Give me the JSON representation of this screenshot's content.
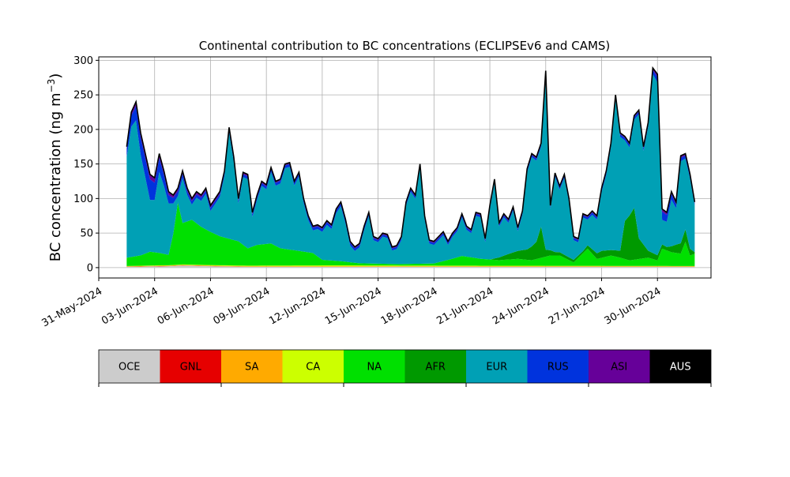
{
  "chart_data": {
    "type": "area",
    "stacked": true,
    "title": "Continental contribution to BC concentrations (ECLIPSEv6 and CAMS)",
    "ylabel_main": "BC concentration (ng m",
    "ylabel_sup": "−3",
    "ylabel_close": ")",
    "ylim": [
      -15,
      305
    ],
    "xlim_days": [
      "2024-05-31",
      "2024-07-02T21:00"
    ],
    "grid": true,
    "yticks": [
      0,
      50,
      100,
      150,
      200,
      250,
      300
    ],
    "xticks": [
      "31-May-2024",
      "03-Jun-2024",
      "06-Jun-2024",
      "09-Jun-2024",
      "12-Jun-2024",
      "15-Jun-2024",
      "18-Jun-2024",
      "21-Jun-2024",
      "24-Jun-2024",
      "27-Jun-2024",
      "30-Jun-2024"
    ],
    "x_start": "2024-06-01T12:00",
    "x_end": "2024-07-02",
    "x_step_hours": 6,
    "layer_order": [
      "OCE",
      "GNL",
      "SA",
      "CA",
      "NA",
      "AFR",
      "EUR",
      "RUS",
      "ASI",
      "AUS"
    ],
    "colors": {
      "OCE": "#cccccc",
      "GNL": "#e60000",
      "SA": "#ffaa00",
      "CA": "#ccff00",
      "NA": "#00e000",
      "AFR": "#009900",
      "EUR": "#00a0b5",
      "RUS": "#0033dd",
      "ASI": "#660099",
      "AUS": "#000000"
    },
    "legend": {
      "placement": "below",
      "entries": [
        "OCE",
        "GNL",
        "SA",
        "CA",
        "NA",
        "AFR",
        "EUR",
        "RUS",
        "ASI",
        "AUS"
      ]
    },
    "total_knots": [
      [
        "2024-06-01T12:00",
        175
      ],
      [
        "2024-06-01T18:00",
        225
      ],
      [
        "2024-06-02T00:00",
        240
      ],
      [
        "2024-06-02T06:00",
        195
      ],
      [
        "2024-06-02T12:00",
        165
      ],
      [
        "2024-06-02T18:00",
        135
      ],
      [
        "2024-06-03T00:00",
        130
      ],
      [
        "2024-06-03T06:00",
        165
      ],
      [
        "2024-06-03T12:00",
        140
      ],
      [
        "2024-06-03T18:00",
        110
      ],
      [
        "2024-06-04T00:00",
        105
      ],
      [
        "2024-06-04T06:00",
        115
      ],
      [
        "2024-06-04T12:00",
        140
      ],
      [
        "2024-06-04T18:00",
        115
      ],
      [
        "2024-06-05T00:00",
        100
      ],
      [
        "2024-06-05T06:00",
        110
      ],
      [
        "2024-06-05T12:00",
        105
      ],
      [
        "2024-06-05T18:00",
        115
      ],
      [
        "2024-06-06T00:00",
        90
      ],
      [
        "2024-06-06T06:00",
        100
      ],
      [
        "2024-06-06T12:00",
        110
      ],
      [
        "2024-06-06T18:00",
        140
      ],
      [
        "2024-06-07T00:00",
        203
      ],
      [
        "2024-06-07T06:00",
        160
      ],
      [
        "2024-06-07T12:00",
        100
      ],
      [
        "2024-06-07T18:00",
        138
      ],
      [
        "2024-06-08T00:00",
        135
      ],
      [
        "2024-06-08T06:00",
        80
      ],
      [
        "2024-06-08T12:00",
        105
      ],
      [
        "2024-06-08T18:00",
        125
      ],
      [
        "2024-06-09T00:00",
        120
      ],
      [
        "2024-06-09T06:00",
        145
      ],
      [
        "2024-06-09T12:00",
        125
      ],
      [
        "2024-06-09T18:00",
        128
      ],
      [
        "2024-06-10T00:00",
        150
      ],
      [
        "2024-06-10T06:00",
        152
      ],
      [
        "2024-06-10T12:00",
        125
      ],
      [
        "2024-06-10T18:00",
        138
      ],
      [
        "2024-06-11T00:00",
        100
      ],
      [
        "2024-06-11T06:00",
        75
      ],
      [
        "2024-06-11T12:00",
        60
      ],
      [
        "2024-06-11T18:00",
        62
      ],
      [
        "2024-06-12T00:00",
        58
      ],
      [
        "2024-06-12T06:00",
        68
      ],
      [
        "2024-06-12T12:00",
        62
      ],
      [
        "2024-06-12T18:00",
        85
      ],
      [
        "2024-06-13T00:00",
        95
      ],
      [
        "2024-06-13T06:00",
        70
      ],
      [
        "2024-06-13T12:00",
        38
      ],
      [
        "2024-06-13T18:00",
        30
      ],
      [
        "2024-06-14T00:00",
        35
      ],
      [
        "2024-06-14T06:00",
        60
      ],
      [
        "2024-06-14T12:00",
        80
      ],
      [
        "2024-06-14T18:00",
        45
      ],
      [
        "2024-06-15T00:00",
        42
      ],
      [
        "2024-06-15T06:00",
        50
      ],
      [
        "2024-06-15T12:00",
        48
      ],
      [
        "2024-06-15T18:00",
        30
      ],
      [
        "2024-06-16T00:00",
        32
      ],
      [
        "2024-06-16T06:00",
        45
      ],
      [
        "2024-06-16T12:00",
        95
      ],
      [
        "2024-06-16T18:00",
        115
      ],
      [
        "2024-06-17T00:00",
        105
      ],
      [
        "2024-06-17T06:00",
        150
      ],
      [
        "2024-06-17T12:00",
        75
      ],
      [
        "2024-06-17T18:00",
        40
      ],
      [
        "2024-06-18T00:00",
        38
      ],
      [
        "2024-06-18T06:00",
        45
      ],
      [
        "2024-06-18T12:00",
        52
      ],
      [
        "2024-06-18T18:00",
        38
      ],
      [
        "2024-06-19T00:00",
        50
      ],
      [
        "2024-06-19T06:00",
        58
      ],
      [
        "2024-06-19T12:00",
        78
      ],
      [
        "2024-06-19T18:00",
        60
      ],
      [
        "2024-06-20T00:00",
        55
      ],
      [
        "2024-06-20T06:00",
        80
      ],
      [
        "2024-06-20T12:00",
        78
      ],
      [
        "2024-06-20T18:00",
        42
      ],
      [
        "2024-06-21T00:00",
        90
      ],
      [
        "2024-06-21T06:00",
        128
      ],
      [
        "2024-06-21T12:00",
        65
      ],
      [
        "2024-06-21T18:00",
        78
      ],
      [
        "2024-06-22T00:00",
        70
      ],
      [
        "2024-06-22T06:00",
        88
      ],
      [
        "2024-06-22T12:00",
        58
      ],
      [
        "2024-06-22T18:00",
        82
      ],
      [
        "2024-06-23T00:00",
        143
      ],
      [
        "2024-06-23T06:00",
        165
      ],
      [
        "2024-06-23T12:00",
        160
      ],
      [
        "2024-06-23T18:00",
        180
      ],
      [
        "2024-06-24T00:00",
        285
      ],
      [
        "2024-06-24T06:00",
        90
      ],
      [
        "2024-06-24T12:00",
        137
      ],
      [
        "2024-06-24T18:00",
        118
      ],
      [
        "2024-06-25T00:00",
        135
      ],
      [
        "2024-06-25T06:00",
        100
      ],
      [
        "2024-06-25T12:00",
        45
      ],
      [
        "2024-06-25T18:00",
        42
      ],
      [
        "2024-06-26T00:00",
        78
      ],
      [
        "2024-06-26T06:00",
        75
      ],
      [
        "2024-06-26T12:00",
        82
      ],
      [
        "2024-06-26T18:00",
        75
      ],
      [
        "2024-06-27T00:00",
        115
      ],
      [
        "2024-06-27T06:00",
        140
      ],
      [
        "2024-06-27T12:00",
        180
      ],
      [
        "2024-06-27T18:00",
        250
      ],
      [
        "2024-06-28T00:00",
        195
      ],
      [
        "2024-06-28T06:00",
        190
      ],
      [
        "2024-06-28T12:00",
        180
      ],
      [
        "2024-06-28T18:00",
        220
      ],
      [
        "2024-06-29T00:00",
        228
      ],
      [
        "2024-06-29T06:00",
        175
      ],
      [
        "2024-06-29T12:00",
        210
      ],
      [
        "2024-06-29T18:00",
        289
      ],
      [
        "2024-06-30T00:00",
        280
      ],
      [
        "2024-06-30T06:00",
        85
      ],
      [
        "2024-06-30T12:00",
        80
      ],
      [
        "2024-06-30T18:00",
        110
      ],
      [
        "2024-07-01T00:00",
        95
      ],
      [
        "2024-07-01T06:00",
        162
      ],
      [
        "2024-07-01T12:00",
        165
      ],
      [
        "2024-07-01T18:00",
        135
      ],
      [
        "2024-07-02T00:00",
        95
      ]
    ],
    "na_knots": [
      [
        "2024-06-01T12:00",
        12
      ],
      [
        "2024-06-02T06:00",
        15
      ],
      [
        "2024-06-02T18:00",
        20
      ],
      [
        "2024-06-03T06:00",
        18
      ],
      [
        "2024-06-03T18:00",
        15
      ],
      [
        "2024-06-04T00:00",
        45
      ],
      [
        "2024-06-04T06:00",
        90
      ],
      [
        "2024-06-04T12:00",
        60
      ],
      [
        "2024-06-05T00:00",
        65
      ],
      [
        "2024-06-05T12:00",
        55
      ],
      [
        "2024-06-06T00:00",
        48
      ],
      [
        "2024-06-06T12:00",
        42
      ],
      [
        "2024-06-07T12:00",
        35
      ],
      [
        "2024-06-08T00:00",
        25
      ],
      [
        "2024-06-08T12:00",
        30
      ],
      [
        "2024-06-09T06:00",
        32
      ],
      [
        "2024-06-09T18:00",
        25
      ],
      [
        "2024-06-10T12:00",
        22
      ],
      [
        "2024-06-11T00:00",
        20
      ],
      [
        "2024-06-11T12:00",
        18
      ],
      [
        "2024-06-12T00:00",
        8
      ],
      [
        "2024-06-13T00:00",
        6
      ],
      [
        "2024-06-14T00:00",
        3
      ],
      [
        "2024-06-16T00:00",
        2
      ],
      [
        "2024-06-18T00:00",
        3
      ],
      [
        "2024-06-19T00:00",
        10
      ],
      [
        "2024-06-19T12:00",
        14
      ],
      [
        "2024-06-20T12:00",
        10
      ],
      [
        "2024-06-21T12:00",
        8
      ],
      [
        "2024-06-22T12:00",
        10
      ],
      [
        "2024-06-23T06:00",
        8
      ],
      [
        "2024-06-24T06:00",
        15
      ],
      [
        "2024-06-24T18:00",
        15
      ],
      [
        "2024-06-25T12:00",
        5
      ],
      [
        "2024-06-26T06:00",
        25
      ],
      [
        "2024-06-26T18:00",
        10
      ],
      [
        "2024-06-27T12:00",
        15
      ],
      [
        "2024-06-28T00:00",
        12
      ],
      [
        "2024-06-28T12:00",
        8
      ],
      [
        "2024-06-29T00:00",
        10
      ],
      [
        "2024-06-29T12:00",
        12
      ],
      [
        "2024-06-30T00:00",
        8
      ],
      [
        "2024-06-30T06:00",
        25
      ],
      [
        "2024-06-30T18:00",
        20
      ],
      [
        "2024-07-01T06:00",
        18
      ],
      [
        "2024-07-01T12:00",
        35
      ],
      [
        "2024-07-01T18:00",
        15
      ],
      [
        "2024-07-02T00:00",
        18
      ]
    ],
    "afr_knots": [
      [
        "2024-06-01T12:00",
        0
      ],
      [
        "2024-06-21T00:00",
        0
      ],
      [
        "2024-06-22T00:00",
        8
      ],
      [
        "2024-06-23T00:00",
        15
      ],
      [
        "2024-06-23T12:00",
        25
      ],
      [
        "2024-06-23T18:00",
        45
      ],
      [
        "2024-06-24T00:00",
        10
      ],
      [
        "2024-06-24T12:00",
        5
      ],
      [
        "2024-06-26T00:00",
        3
      ],
      [
        "2024-06-27T00:00",
        10
      ],
      [
        "2024-06-27T12:00",
        8
      ],
      [
        "2024-06-28T00:00",
        10
      ],
      [
        "2024-06-28T06:00",
        55
      ],
      [
        "2024-06-28T18:00",
        75
      ],
      [
        "2024-06-29T00:00",
        30
      ],
      [
        "2024-06-29T12:00",
        10
      ],
      [
        "2024-06-30T12:00",
        5
      ],
      [
        "2024-07-01T00:00",
        12
      ],
      [
        "2024-07-01T12:00",
        18
      ],
      [
        "2024-07-02T00:00",
        2
      ]
    ],
    "rus_knots": [
      [
        "2024-06-01T12:00",
        12
      ],
      [
        "2024-06-02T06:00",
        25
      ],
      [
        "2024-06-02T18:00",
        30
      ],
      [
        "2024-06-03T06:00",
        20
      ],
      [
        "2024-06-04T00:00",
        8
      ],
      [
        "2024-06-05T00:00",
        5
      ],
      [
        "2024-06-07T00:00",
        4
      ],
      [
        "2024-06-10T00:00",
        4
      ],
      [
        "2024-06-13T00:00",
        4
      ],
      [
        "2024-06-15T00:00",
        3
      ],
      [
        "2024-06-20T00:00",
        3
      ],
      [
        "2024-06-25T00:00",
        3
      ],
      [
        "2024-06-29T12:00",
        4
      ],
      [
        "2024-06-30T00:00",
        8
      ],
      [
        "2024-06-30T06:00",
        12
      ],
      [
        "2024-07-01T00:00",
        6
      ],
      [
        "2024-07-02T00:00",
        3
      ]
    ],
    "asi_knots": [
      [
        "2024-06-01T12:00",
        2
      ],
      [
        "2024-06-02T00:00",
        5
      ],
      [
        "2024-06-03T00:00",
        6
      ],
      [
        "2024-06-04T00:00",
        3
      ],
      [
        "2024-06-10T00:00",
        1
      ],
      [
        "2024-06-29T12:00",
        1
      ],
      [
        "2024-06-30T00:00",
        3
      ],
      [
        "2024-07-02T00:00",
        1
      ]
    ],
    "aus_knots": [
      [
        "2024-06-01T12:00",
        1.2
      ],
      [
        "2024-07-02T00:00",
        1.2
      ]
    ],
    "oce_knots": [
      [
        "2024-06-01T12:00",
        1
      ],
      [
        "2024-06-03T18:00",
        2
      ],
      [
        "2024-06-04T12:00",
        3
      ],
      [
        "2024-06-06T00:00",
        2
      ],
      [
        "2024-06-08T00:00",
        1
      ],
      [
        "2024-07-02T00:00",
        1
      ]
    ],
    "gnl_knots": [
      [
        "2024-06-01T12:00",
        0.3
      ],
      [
        "2024-07-02T00:00",
        0.3
      ]
    ],
    "sa_knots": [
      [
        "2024-06-01T12:00",
        0.5
      ],
      [
        "2024-07-02T00:00",
        0.5
      ]
    ],
    "ca_knots": [
      [
        "2024-06-01T12:00",
        0.5
      ],
      [
        "2024-06-13T00:00",
        1.5
      ],
      [
        "2024-06-20T00:00",
        1
      ],
      [
        "2024-07-02T00:00",
        0.5
      ]
    ]
  }
}
